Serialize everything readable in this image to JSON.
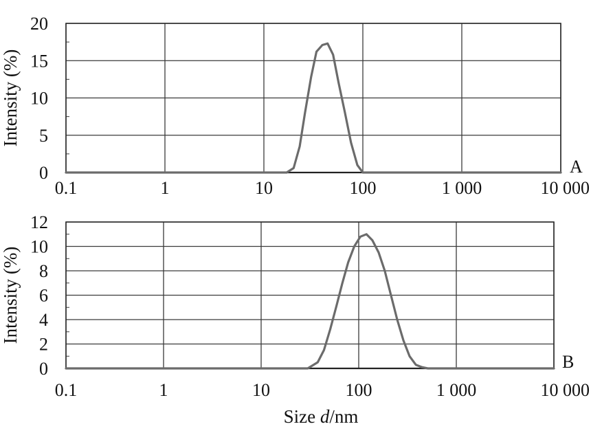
{
  "chart_data": [
    {
      "type": "line",
      "panel_label": "A",
      "ylabel": "Intensity (%)",
      "xlabel": "",
      "x_scale": "log",
      "xlim": [
        0.1,
        10000
      ],
      "ylim": [
        0,
        20
      ],
      "x_ticks": [
        0.1,
        1,
        10,
        100,
        1000,
        10000
      ],
      "x_tick_labels": [
        "0.1",
        "1",
        "10",
        "100",
        "1 000",
        "10 000"
      ],
      "y_ticks": [
        0,
        5,
        10,
        15,
        20
      ],
      "y_tick_labels": [
        "0",
        "5",
        "10",
        "15",
        "20"
      ],
      "grid": true,
      "series": [
        {
          "x": [
            0.1,
            17,
            20,
            23,
            26,
            30,
            34,
            39,
            44,
            50,
            57,
            66,
            76,
            88,
            100,
            10000
          ],
          "values": [
            0,
            0,
            0.6,
            3.5,
            8.0,
            12.8,
            16.2,
            17.1,
            17.3,
            15.8,
            12.0,
            8.0,
            4.0,
            1.0,
            0,
            0
          ]
        }
      ]
    },
    {
      "type": "line",
      "panel_label": "B",
      "ylabel": "Intensity (%)",
      "xlabel": "Size d/nm",
      "x_scale": "log",
      "xlim": [
        0.1,
        10000
      ],
      "ylim": [
        0,
        12
      ],
      "x_ticks": [
        0.1,
        1,
        10,
        100,
        1000,
        10000
      ],
      "x_tick_labels": [
        "0.1",
        "1",
        "10",
        "100",
        "1 000",
        "10 000"
      ],
      "y_ticks": [
        0,
        2,
        4,
        6,
        8,
        10,
        12
      ],
      "y_tick_labels": [
        "0",
        "2",
        "4",
        "6",
        "8",
        "10",
        "12"
      ],
      "grid": true,
      "series": [
        {
          "x": [
            0.1,
            30,
            38,
            44,
            51,
            59,
            68,
            78,
            90,
            104,
            120,
            138,
            160,
            185,
            214,
            248,
            287,
            332,
            385,
            445,
            510,
            10000
          ],
          "values": [
            0,
            0,
            0.5,
            1.5,
            3.2,
            5.1,
            7.0,
            8.7,
            10.0,
            10.8,
            11.0,
            10.5,
            9.5,
            8.0,
            6.0,
            4.0,
            2.3,
            1.0,
            0.3,
            0.1,
            0,
            0
          ]
        }
      ]
    }
  ]
}
